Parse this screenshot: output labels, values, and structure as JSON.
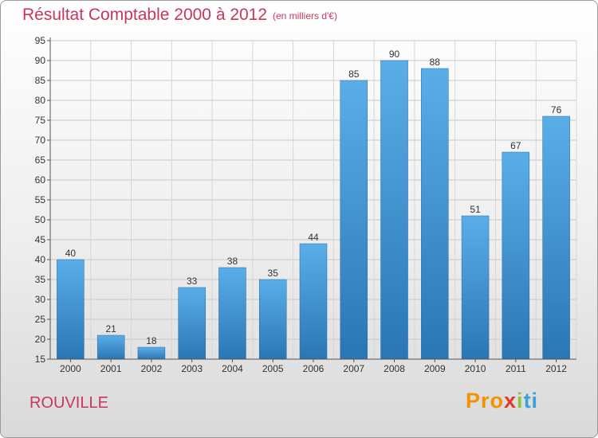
{
  "header": {
    "title": "Résultat Comptable 2000 à 2012",
    "subtitle": "(en milliers d'€)"
  },
  "footer": {
    "town": "ROUVILLE",
    "logo": [
      "Pro",
      "x",
      "i",
      "ti"
    ]
  },
  "colors": {
    "title": "#c8375a",
    "bar_top": "#5aaee8",
    "bar_bottom": "#2a76b5",
    "grid": "#c8c8c8"
  },
  "chart_data": {
    "type": "bar",
    "title": "Résultat Comptable 2000 à 2012",
    "subtitle": "(en milliers d'€)",
    "categories": [
      "2000",
      "2001",
      "2002",
      "2003",
      "2004",
      "2005",
      "2006",
      "2007",
      "2008",
      "2009",
      "2010",
      "2011",
      "2012"
    ],
    "values": [
      40,
      21,
      18,
      33,
      38,
      35,
      44,
      85,
      90,
      88,
      51,
      67,
      76
    ],
    "ylim": [
      15,
      95
    ],
    "yticks": [
      15,
      20,
      25,
      30,
      35,
      40,
      45,
      50,
      55,
      60,
      65,
      70,
      75,
      80,
      85,
      90,
      95
    ],
    "grid": true,
    "xlabel": "",
    "ylabel": ""
  }
}
